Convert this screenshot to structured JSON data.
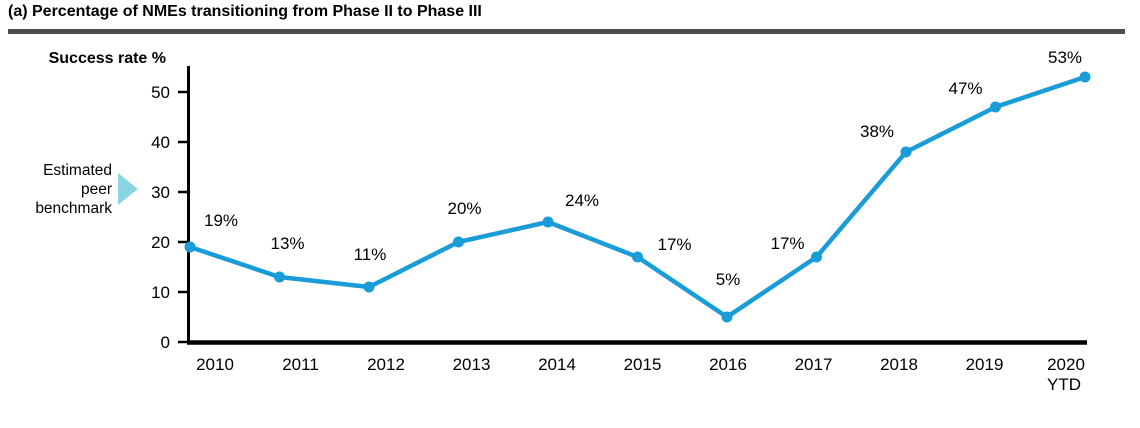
{
  "chart_data": {
    "type": "line",
    "title": "(a) Percentage of NMEs transitioning from Phase II to Phase III",
    "ylabel": "Success rate %",
    "categories": [
      "2010",
      "2011",
      "2012",
      "2013",
      "2014",
      "2015",
      "2016",
      "2017",
      "2018",
      "2019",
      "2020 YTD"
    ],
    "values": [
      19,
      13,
      11,
      20,
      24,
      17,
      5,
      17,
      38,
      47,
      53
    ],
    "point_labels": [
      "19%",
      "13%",
      "11%",
      "20%",
      "24%",
      "17%",
      "5%",
      "17%",
      "38%",
      "47%",
      "53%"
    ],
    "ylim": [
      0,
      55
    ],
    "yticks": [
      0,
      10,
      20,
      30,
      40,
      50
    ],
    "grid": false,
    "legend_position": "none",
    "benchmark": {
      "label": "Estimated peer benchmark",
      "value": 30
    },
    "colors": {
      "line": "#199CD8",
      "benchmark_arrow": "#8BD4E6",
      "axis": "#000000",
      "title_rule": "#4D4D4D",
      "text": "#000000"
    }
  }
}
